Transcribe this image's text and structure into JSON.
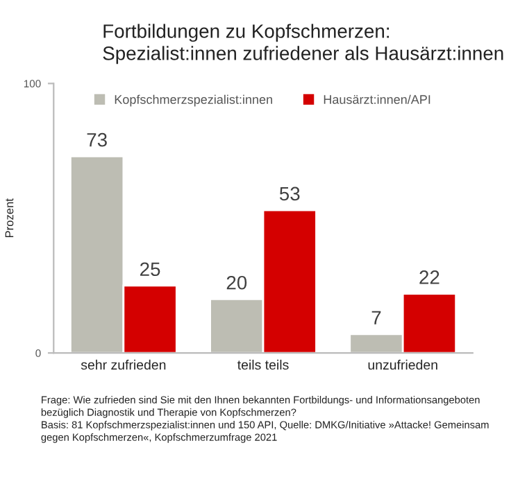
{
  "chart_data": {
    "type": "bar",
    "title": "Fortbildungen zu Kopfschmerzen:\nSpezialist:innen zufriedener als Hausärzt:innen",
    "ylabel": "Prozent",
    "categories": [
      "sehr zufrieden",
      "teils teils",
      "unzufrieden"
    ],
    "series": [
      {
        "name": "Kopfschmerzspezialist:innen",
        "color": "#bdbdb3",
        "values": [
          73,
          20,
          7
        ]
      },
      {
        "name": "Hausärzt:innen/API",
        "color": "#d40000",
        "values": [
          25,
          53,
          22
        ]
      }
    ],
    "ylim": [
      0,
      100
    ],
    "yticks": [
      0,
      100
    ],
    "data_labels": true,
    "grid": false,
    "legend": "top",
    "annotations": [
      "Frage: Wie zufrieden sind Sie mit den Ihnen bekannten Fortbildungs- und Informationsangeboten bezüglich Diagnostik und Therapie von Kopfschmerzen?\nBasis: 81 Kopfschmerzspezialist:innen und 150 API, Quelle: DMKG/Initiative »Attacke! Gemeinsam gegen Kopfschmerzen«, Kopfschmerzumfrage 2021"
    ]
  }
}
